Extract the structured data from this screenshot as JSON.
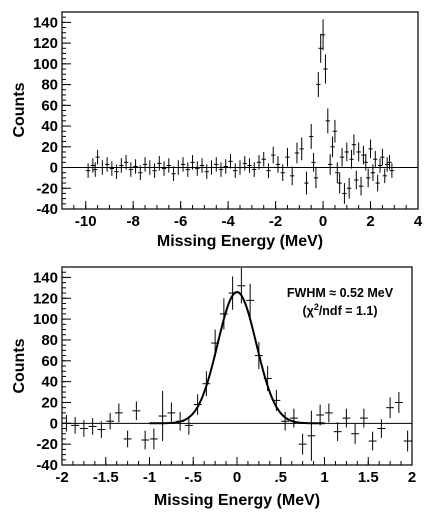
{
  "chart_data": [
    {
      "type": "scatter",
      "xlabel": "Missing Energy (MeV)",
      "ylabel": "Counts",
      "xlim": [
        -11,
        4
      ],
      "ylim": [
        -40,
        150
      ],
      "xticks": [
        -10,
        -8,
        -6,
        -4,
        -2,
        0,
        2,
        4
      ],
      "yticks": [
        -40,
        -20,
        0,
        20,
        40,
        60,
        80,
        100,
        120,
        140
      ],
      "zero_line": true,
      "error_bars": true,
      "series": [
        {
          "x": [
            -9.9,
            -9.7,
            -9.6,
            -9.5,
            -9.3,
            -9.1,
            -8.9,
            -8.7,
            -8.5,
            -8.3,
            -8.1,
            -7.9,
            -7.7,
            -7.5,
            -7.3,
            -7.1,
            -6.9,
            -6.7,
            -6.5,
            -6.3,
            -6.1,
            -5.9,
            -5.7,
            -5.5,
            -5.3,
            -5.1,
            -4.9,
            -4.7,
            -4.5,
            -4.3,
            -4.1,
            -3.9,
            -3.7,
            -3.5,
            -3.3,
            -3.1,
            -2.9,
            -2.7,
            -2.5,
            -2.3,
            -2.1,
            -1.9,
            -1.7,
            -1.5,
            -1.3,
            -1.1,
            -0.9,
            -0.7,
            -0.5,
            -0.4,
            -0.3,
            -0.2,
            -0.1,
            0.0,
            0.1,
            0.2,
            0.3,
            0.4,
            0.5,
            0.6,
            0.7,
            0.8,
            0.9,
            1.0,
            1.1,
            1.2,
            1.3,
            1.4,
            1.5,
            1.6,
            1.7,
            1.8,
            1.9,
            2.0,
            2.1,
            2.2,
            2.3,
            2.4,
            2.5,
            2.6,
            2.7,
            2.8,
            2.9
          ],
          "y": [
            -3,
            2,
            -2,
            10,
            0,
            3,
            -1,
            -4,
            2,
            5,
            -2,
            1,
            -5,
            3,
            0,
            -3,
            4,
            -1,
            2,
            -6,
            0,
            3,
            -2,
            5,
            -1,
            2,
            -4,
            0,
            3,
            -2,
            1,
            6,
            -3,
            0,
            4,
            2,
            -2,
            5,
            8,
            -3,
            12,
            3,
            -5,
            10,
            -8,
            14,
            18,
            -15,
            30,
            5,
            -10,
            80,
            115,
            128,
            95,
            45,
            3,
            20,
            35,
            -5,
            -15,
            10,
            -25,
            15,
            -20,
            8,
            22,
            -12,
            15,
            -18,
            12,
            5,
            -10,
            18,
            -5,
            8,
            -15,
            2,
            10,
            -8,
            3,
            5,
            -3
          ],
          "err": [
            7,
            7,
            7,
            7,
            7,
            7,
            7,
            7,
            7,
            7,
            7,
            7,
            7,
            7,
            7,
            7,
            7,
            7,
            7,
            7,
            7,
            7,
            7,
            7,
            7,
            7,
            7,
            7,
            7,
            7,
            7,
            7,
            7,
            7,
            7,
            7,
            7,
            7,
            7,
            7,
            8,
            8,
            8,
            9,
            9,
            10,
            11,
            11,
            12,
            9,
            10,
            12,
            14,
            15,
            14,
            12,
            10,
            10,
            11,
            10,
            10,
            9,
            10,
            9,
            10,
            9,
            10,
            9,
            9,
            9,
            9,
            8,
            9,
            9,
            8,
            8,
            8,
            7,
            8,
            7,
            7,
            7,
            7
          ]
        }
      ]
    },
    {
      "type": "scatter",
      "xlabel": "Missing Energy (MeV)",
      "ylabel": "Counts",
      "xlim": [
        -2,
        2
      ],
      "ylim": [
        -40,
        150
      ],
      "xticks": [
        -2,
        -1.5,
        -1,
        -0.5,
        0,
        0.5,
        1,
        1.5,
        2
      ],
      "yticks": [
        -40,
        -20,
        0,
        20,
        40,
        60,
        80,
        100,
        120,
        140
      ],
      "zero_line": true,
      "error_bars": true,
      "annotation": {
        "line1": "FWHM ≈ 0.52 MeV",
        "line2_prefix": "(χ",
        "line2_sup": "2",
        "line2_suffix": "/ndf = 1.1)"
      },
      "fit": {
        "type": "gaussian",
        "amplitude": 126,
        "mean": 0.0,
        "fwhm": 0.52,
        "x_range": [
          -1,
          1
        ]
      },
      "series": [
        {
          "x": [
            -1.95,
            -1.85,
            -1.75,
            -1.65,
            -1.55,
            -1.45,
            -1.35,
            -1.25,
            -1.15,
            -1.05,
            -0.95,
            -0.85,
            -0.75,
            -0.65,
            -0.55,
            -0.45,
            -0.35,
            -0.25,
            -0.15,
            -0.05,
            0.05,
            0.15,
            0.25,
            0.35,
            0.45,
            0.55,
            0.65,
            0.75,
            0.85,
            0.95,
            1.05,
            1.15,
            1.25,
            1.35,
            1.45,
            1.55,
            1.65,
            1.75,
            1.85,
            1.95
          ],
          "y": [
            0,
            -2,
            -5,
            -3,
            -6,
            2,
            10,
            -15,
            12,
            -16,
            -15,
            7,
            10,
            2,
            -2,
            18,
            38,
            77,
            105,
            125,
            132,
            118,
            65,
            43,
            22,
            2,
            5,
            -20,
            -12,
            8,
            10,
            -8,
            5,
            -10,
            5,
            -17,
            -5,
            15,
            20,
            -17
          ],
          "err": [
            8,
            8,
            8,
            8,
            8,
            8,
            9,
            8,
            9,
            9,
            10,
            24,
            10,
            9,
            9,
            10,
            12,
            13,
            15,
            16,
            17,
            16,
            13,
            12,
            10,
            9,
            9,
            10,
            24,
            10,
            9,
            9,
            9,
            10,
            9,
            9,
            9,
            10,
            10,
            10
          ]
        }
      ]
    }
  ]
}
